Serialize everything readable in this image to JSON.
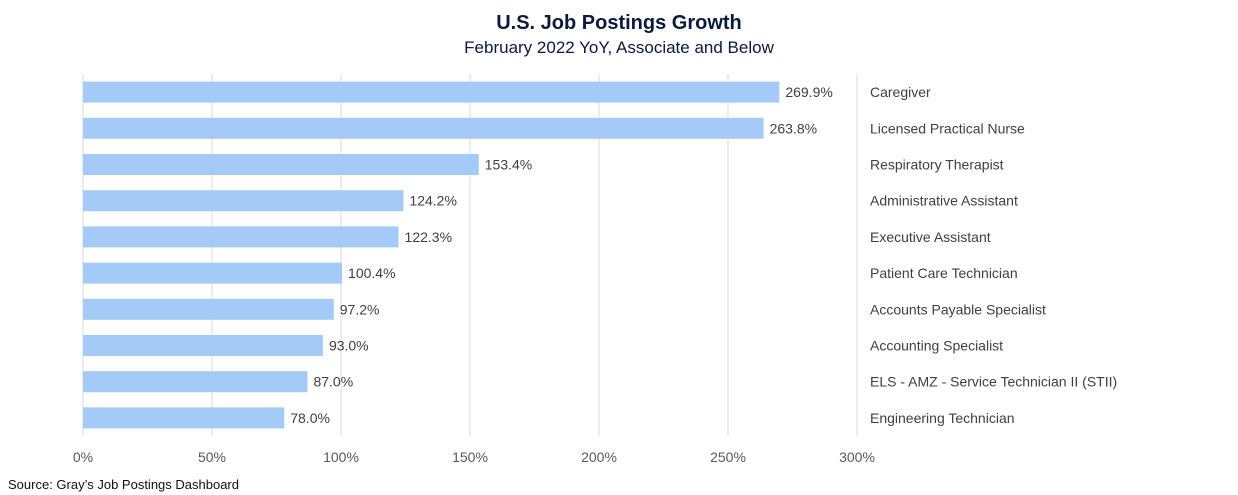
{
  "chart_data": {
    "type": "bar",
    "orientation": "horizontal",
    "title": "U.S. Job Postings Growth",
    "subtitle": "February 2022 YoY,  Associate and Below",
    "xlabel": "",
    "ylabel": "",
    "xlim": [
      0,
      300
    ],
    "x_ticks": [
      0,
      50,
      100,
      150,
      200,
      250,
      300
    ],
    "x_tick_labels": [
      "0%",
      "50%",
      "100%",
      "150%",
      "200%",
      "250%",
      "300%"
    ],
    "grid": true,
    "legend": "none",
    "bar_color": "#a4cbf7",
    "categories": [
      "Caregiver",
      "Licensed Practical Nurse",
      "Respiratory Therapist",
      "Administrative Assistant",
      "Executive Assistant",
      "Patient Care Technician",
      "Accounts Payable Specialist",
      "Accounting Specialist",
      "ELS - AMZ - Service Technician II (STII)",
      "Engineering Technician"
    ],
    "values": [
      269.9,
      263.8,
      153.4,
      124.2,
      122.3,
      100.4,
      97.2,
      93.0,
      87.0,
      78.0
    ],
    "value_labels": [
      "269.9%",
      "263.8%",
      "153.4%",
      "124.2%",
      "122.3%",
      "100.4%",
      "97.2%",
      "93.0%",
      "87.0%",
      "78.0%"
    ]
  },
  "source": "Source: Gray’s Job Postings Dashboard"
}
